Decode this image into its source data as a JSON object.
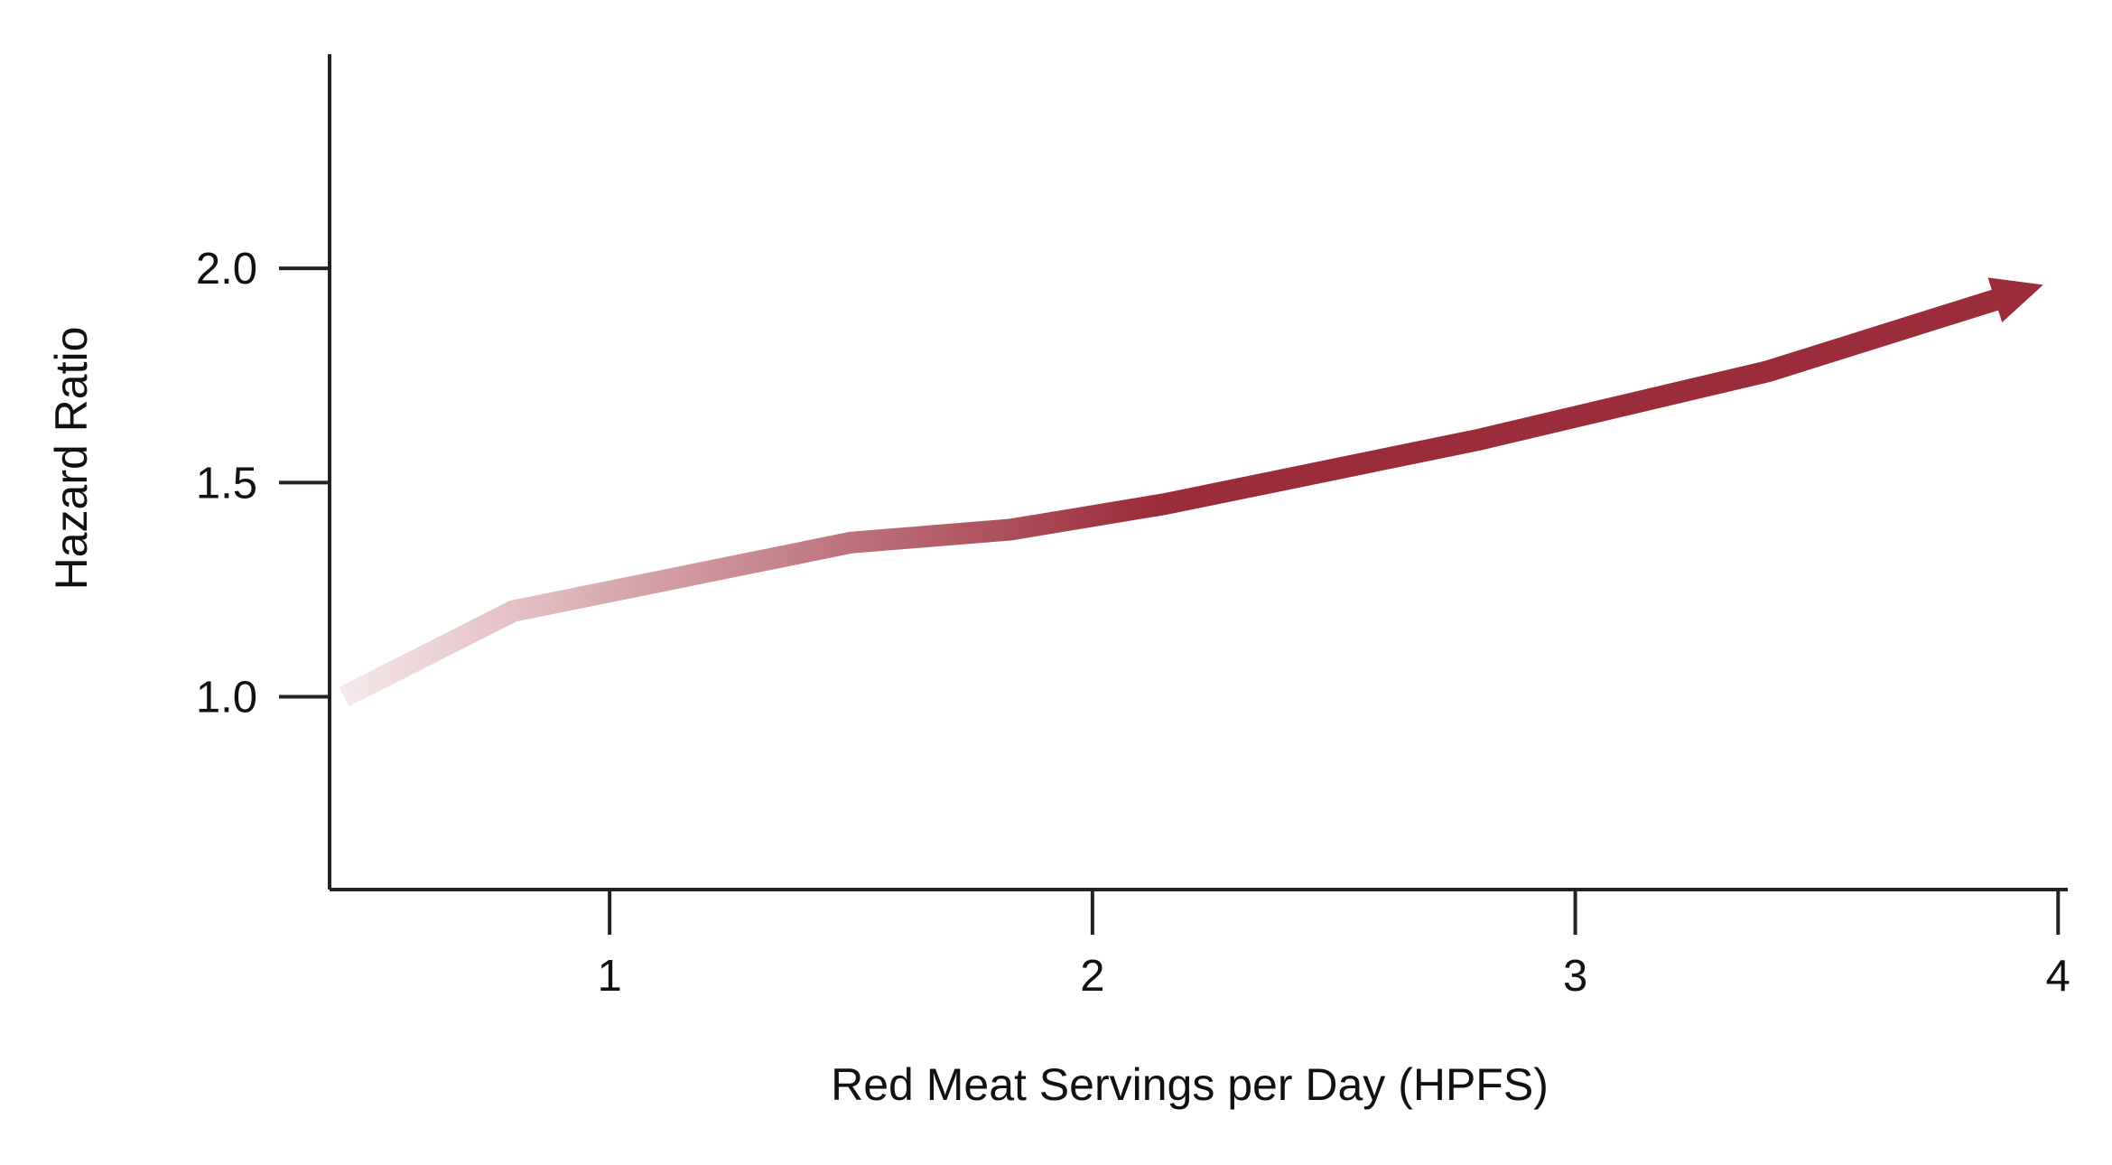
{
  "chart_data": {
    "type": "line",
    "title": "",
    "xlabel": "Red Meat Servings per Day (HPFS)",
    "ylabel": "Hazard Ratio",
    "xlim": [
      0.42,
      4.02
    ],
    "ylim": [
      0.55,
      2.5
    ],
    "x_ticks": [
      1,
      2,
      3,
      4
    ],
    "x_tick_labels": [
      "1",
      "2",
      "3",
      "4"
    ],
    "y_ticks": [
      1.0,
      1.5,
      2.0
    ],
    "y_tick_labels": [
      "1.0",
      "1.5",
      "2.0"
    ],
    "grid": false,
    "legend": "none",
    "series": [
      {
        "x": [
          0.45,
          0.8,
          1.5,
          1.83,
          2.15,
          2.8,
          3.4,
          3.88
        ],
        "y": [
          1.0,
          1.2,
          1.36,
          1.39,
          1.45,
          1.6,
          1.76,
          1.93
        ]
      }
    ],
    "colors": {
      "line_end": "#9b2c39",
      "line_start": "#f6e9eb",
      "axis": "#222222"
    },
    "arrow_end": true
  }
}
